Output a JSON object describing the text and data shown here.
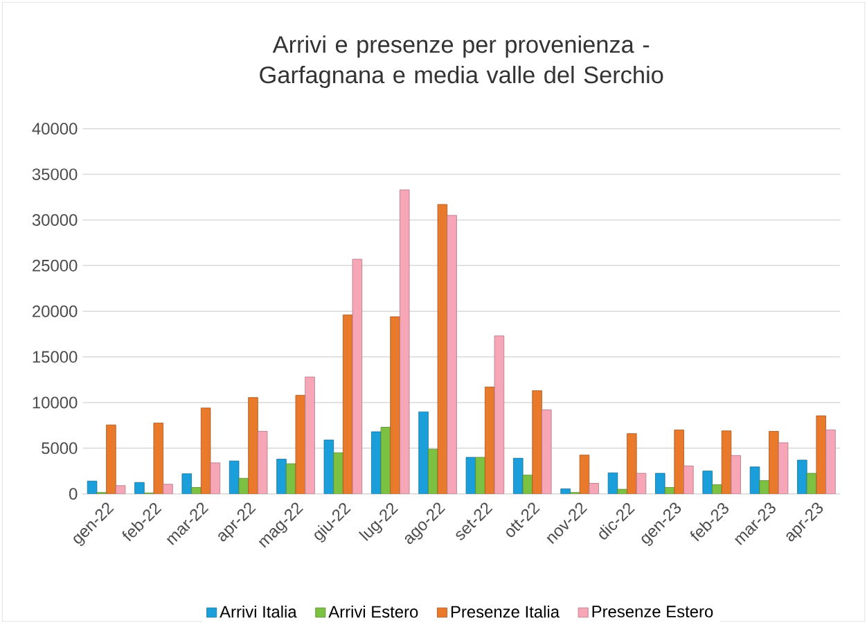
{
  "chart_data": {
    "type": "bar",
    "title": "Arrivi e presenze per provenienza - Garfagnana e media valle del Serchio",
    "categories": [
      "gen-22",
      "feb-22",
      "mar-22",
      "apr-22",
      "mag-22",
      "giu-22",
      "lug-22",
      "ago-22",
      "set-22",
      "ott-22",
      "nov-22",
      "dic-22",
      "gen-23",
      "feb-23",
      "mar-23",
      "apr-23"
    ],
    "series": [
      {
        "name": "Arrivi Italia",
        "color": "#1a9fdb",
        "values": [
          1400,
          1250,
          2200,
          3600,
          3800,
          5900,
          6800,
          9000,
          4000,
          3900,
          550,
          2300,
          2250,
          2500,
          2950,
          3700
        ]
      },
      {
        "name": "Arrivi Estero",
        "color": "#7dc142",
        "values": [
          150,
          100,
          700,
          1700,
          3300,
          4500,
          7300,
          4900,
          4000,
          2050,
          150,
          500,
          700,
          1000,
          1450,
          2250
        ]
      },
      {
        "name": "Presenze Italia",
        "color": "#e97a2b",
        "values": [
          7550,
          7750,
          9400,
          10550,
          10800,
          19600,
          19400,
          31700,
          11700,
          11300,
          4250,
          6600,
          7000,
          6900,
          6850,
          8550
        ]
      },
      {
        "name": "Presenze Estero",
        "color": "#f7a6b8",
        "values": [
          900,
          1050,
          3400,
          6850,
          12800,
          25700,
          33300,
          30500,
          17300,
          9200,
          1150,
          2250,
          3050,
          4200,
          5600,
          7000
        ]
      }
    ],
    "ylim": [
      0,
      40000
    ],
    "yticks": [
      0,
      5000,
      10000,
      15000,
      20000,
      25000,
      30000,
      35000,
      40000
    ],
    "grid": "y",
    "legend": "bottom"
  }
}
